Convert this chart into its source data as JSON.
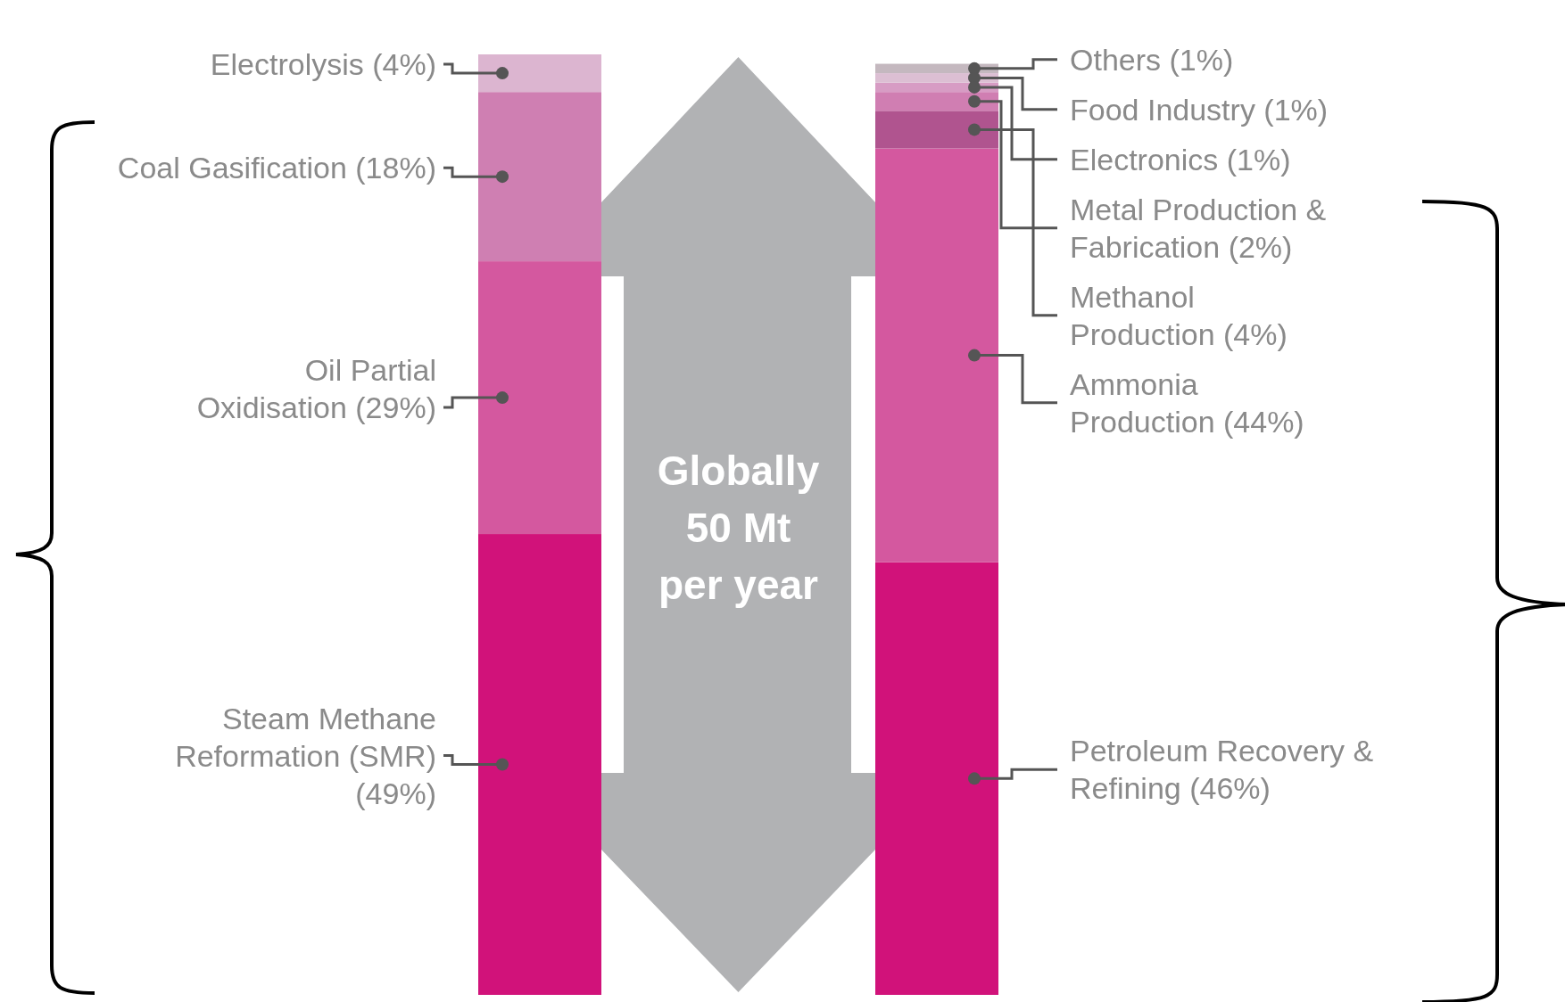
{
  "chart_data": {
    "type": "bar",
    "stacked": true,
    "categories": [
      null,
      null
    ],
    "series": [
      {
        "name": "Steam Methane\nReformation (SMR)\n",
        "color": "#d1127a",
        "values": [
          49,
          null
        ],
        "value_labels": [
          "(49%)",
          null
        ]
      },
      {
        "name": "Oil Partial\nOxidisation",
        "color": "#d4589f",
        "values": [
          29,
          null
        ],
        "value_labels": [
          "(29%)",
          null
        ]
      },
      {
        "name": "Coal Gasification",
        "color": "#cf7fb2",
        "values": [
          18,
          null
        ],
        "value_labels": [
          "(18%)",
          null
        ]
      },
      {
        "name": "Electrolysis",
        "color": "#dcb5d0",
        "values": [
          4,
          null
        ],
        "value_labels": [
          "(4%)",
          null
        ]
      },
      {
        "name": "Petroleum Recovery &\nRefining",
        "color": "#d1127a",
        "values": [
          null,
          46
        ],
        "value_labels": [
          null,
          "(46%)"
        ]
      },
      {
        "name": "Ammonia\nProduction",
        "color": "#d4589f",
        "values": [
          null,
          44
        ],
        "value_labels": [
          null,
          "(44%)"
        ]
      },
      {
        "name": "Methanol\nProduction",
        "color": "#b0548f",
        "values": [
          null,
          4
        ],
        "value_labels": [
          null,
          "(4%)"
        ]
      },
      {
        "name": "Metal Production &\nFabrication",
        "color": "#d07eb2",
        "values": [
          null,
          2
        ],
        "value_labels": [
          null,
          "(2%)"
        ]
      },
      {
        "name": "Electronics",
        "color": "#d79cc4",
        "values": [
          null,
          1
        ],
        "value_labels": [
          null,
          "(1%)"
        ]
      },
      {
        "name": "Food Industry",
        "color": "#dcbfd3",
        "values": [
          null,
          1
        ],
        "value_labels": [
          null,
          "(1%)"
        ]
      },
      {
        "name": "Others",
        "color": "#c4b8bf",
        "values": [
          null,
          1
        ],
        "value_labels": [
          null,
          "(1%)"
        ]
      }
    ],
    "annotations": [
      "Globally\n50 Mt\nper year"
    ]
  }
}
